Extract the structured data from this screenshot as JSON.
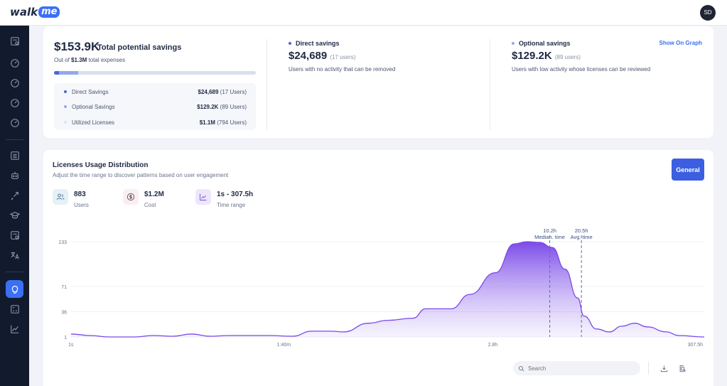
{
  "app": {
    "logo_prefix": "walk",
    "logo_suffix": "me",
    "user_initials": "SD"
  },
  "sidebar": {
    "items": [
      {
        "name": "report-icon"
      },
      {
        "name": "gauge-icon"
      },
      {
        "name": "gauge-icon"
      },
      {
        "name": "gauge-icon"
      },
      {
        "name": "gauge-icon"
      },
      {
        "name": "list-icon"
      },
      {
        "name": "robot-icon"
      },
      {
        "name": "rocket-icon"
      },
      {
        "name": "graduation-cap-icon"
      },
      {
        "name": "report-icon"
      },
      {
        "name": "translate-icon"
      },
      {
        "name": "lightbulb-icon",
        "active": true
      },
      {
        "name": "calculator-icon"
      },
      {
        "name": "line-chart-icon"
      }
    ]
  },
  "savings": {
    "total_amount": "$153.9K",
    "total_label": "Total potential savings",
    "out_of_prefix": "Out of",
    "out_of_amount": "$1.3M",
    "out_of_suffix": "total expenses",
    "breakdown": [
      {
        "label": "Direct Savings",
        "value": "$24,689",
        "users": "(17 Users)",
        "color": "#4a67d6"
      },
      {
        "label": "Optional Savings",
        "value": "$129.2K",
        "users": "(89 Users)",
        "color": "#93a8ec"
      },
      {
        "label": "Utilized Licenses",
        "value": "$1.1M",
        "users": "(794 Users)",
        "color": "#dfe4f5"
      }
    ],
    "direct": {
      "title": "Direct savings",
      "amount": "$24,689",
      "users": "(17 users)",
      "description": "Users with no activity that can be removed",
      "color": "#4a67d6"
    },
    "optional": {
      "title": "Optional savings",
      "amount": "$129.2K",
      "users": "(89 users)",
      "description": "Users with low activity whose licenses can be reviewed",
      "color": "#93a8ec"
    },
    "show_on_graph": "Show On Graph"
  },
  "distribution": {
    "title": "Licenses Usage Distribution",
    "subtitle": "Adjust the time range to discover patterns based on user engagement",
    "general_button": "General",
    "stats": [
      {
        "value": "883",
        "label": "Users",
        "icon": "users-icon",
        "bg": "#e4f1f6"
      },
      {
        "value": "$1.2M",
        "label": "Cost",
        "icon": "dollar-icon",
        "bg": "#fbeef0"
      },
      {
        "value": "1s - 307.5h",
        "label": "Time range",
        "icon": "trend-icon",
        "bg": "#eee6fb"
      }
    ],
    "search_placeholder": "Search"
  },
  "chart_data": {
    "type": "area",
    "x_tick_labels": [
      "1s",
      "1:40m",
      "2.8h",
      "307.5h"
    ],
    "y_ticks": [
      1,
      36,
      71,
      133
    ],
    "ylim": [
      1,
      133
    ],
    "x": [
      0,
      0.03,
      0.06,
      0.1,
      0.13,
      0.16,
      0.19,
      0.22,
      0.25,
      0.28,
      0.31,
      0.35,
      0.38,
      0.41,
      0.43,
      0.47,
      0.5,
      0.54,
      0.56,
      0.6,
      0.63,
      0.67,
      0.7,
      0.72,
      0.74,
      0.76,
      0.78,
      0.8,
      0.81,
      0.83,
      0.85,
      0.87,
      0.89,
      0.91,
      0.94,
      0.96,
      1.0
    ],
    "values": [
      5,
      3,
      1,
      0,
      3,
      2,
      5,
      2,
      3,
      3,
      3,
      2,
      9,
      9,
      8,
      20,
      24,
      27,
      40,
      40,
      60,
      90,
      130,
      133,
      132,
      125,
      95,
      55,
      30,
      12,
      8,
      16,
      20,
      15,
      8,
      3,
      0
    ],
    "series_color": "#8152ef",
    "annotations": [
      {
        "label_value": "10.2h",
        "label_name": "Median. time",
        "x": 0.756
      },
      {
        "label_value": "20.5h",
        "label_name": "Avg. time",
        "x": 0.806
      }
    ],
    "grid": true
  }
}
